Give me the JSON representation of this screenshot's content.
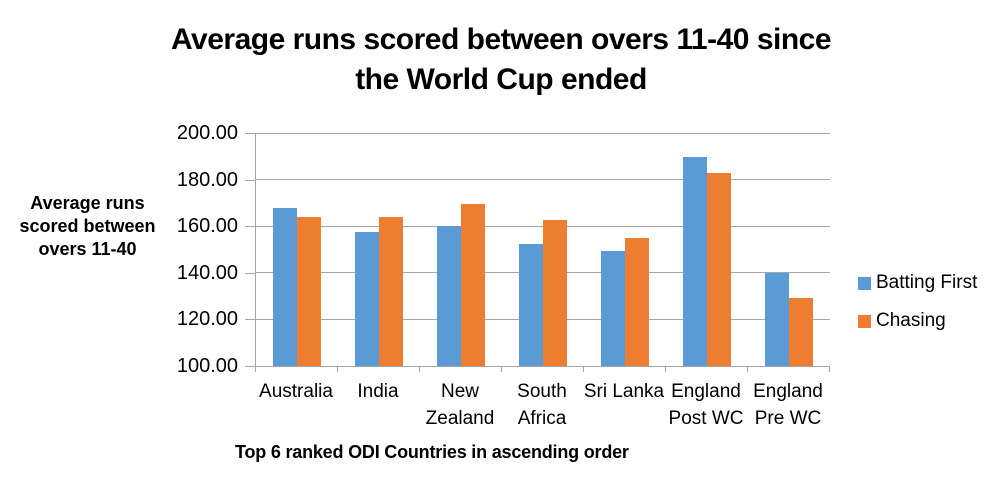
{
  "chart_data": {
    "type": "bar",
    "title": "Average runs scored between overs 11-40 since the World Cup ended",
    "title_lines": [
      "Average runs scored between overs 11-40 since",
      "the World Cup ended"
    ],
    "ylabel": "Average runs scored between overs 11-40",
    "caption": "Top 6 ranked ODI Countries in ascending order",
    "categories": [
      "Australia",
      "India",
      "New\nZealand",
      "South\nAfrica",
      "Sri Lanka",
      "England\nPost WC",
      "England\nPre WC"
    ],
    "series": [
      {
        "name": "Batting First",
        "color": "#5B9BD5",
        "values": [
          168,
          157.5,
          160,
          152.5,
          149.5,
          189.5,
          140
        ]
      },
      {
        "name": "Chasing",
        "color": "#ED7D31",
        "values": [
          164,
          164,
          169.5,
          162.5,
          155,
          183,
          129
        ]
      }
    ],
    "ylim": [
      100,
      200
    ],
    "y_ticks": [
      "200.00",
      "180.00",
      "160.00",
      "140.00",
      "120.00",
      "100.00"
    ],
    "grid": true,
    "legend_position": "right",
    "colors": {
      "gridline": "#A6A6A6",
      "axis": "#A6A6A6",
      "text": "#000000"
    }
  }
}
